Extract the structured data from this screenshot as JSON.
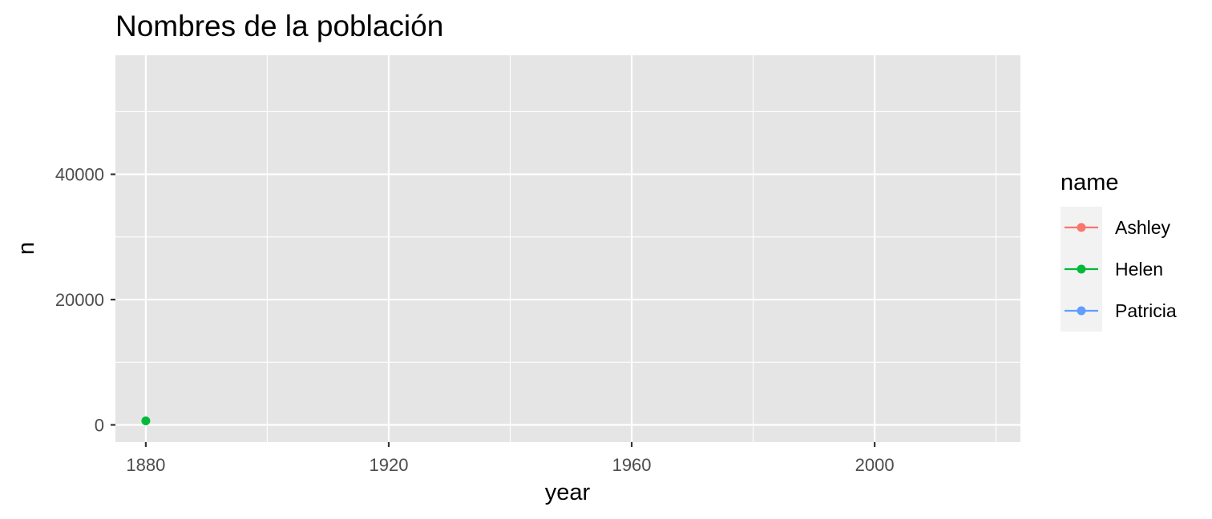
{
  "chart_data": {
    "type": "line",
    "title": "Nombres de la población",
    "xlabel": "year",
    "ylabel": "n",
    "xlim": [
      1875,
      2024
    ],
    "ylim": [
      -2750,
      59000
    ],
    "x_ticks": [
      1880,
      1920,
      1960,
      2000
    ],
    "x_tick_labels": [
      "1880",
      "1920",
      "1960",
      "2000"
    ],
    "x_minor_ticks": [
      1900,
      1940,
      1980,
      2020
    ],
    "y_ticks": [
      0,
      20000,
      40000
    ],
    "y_tick_labels": [
      "0",
      "20000",
      "40000"
    ],
    "y_minor_ticks": [
      10000,
      30000,
      50000
    ],
    "grid": true,
    "panel_background": "#e5e5e5",
    "legend": {
      "title": "name",
      "position": "right",
      "entries": [
        "Ashley",
        "Helen",
        "Patricia"
      ]
    },
    "series": [
      {
        "name": "Ashley",
        "color": "#f8766d",
        "points": []
      },
      {
        "name": "Helen",
        "color": "#00ba38",
        "points": [
          {
            "x": 1880,
            "y": 636
          }
        ]
      },
      {
        "name": "Patricia",
        "color": "#619cff",
        "points": []
      }
    ]
  }
}
